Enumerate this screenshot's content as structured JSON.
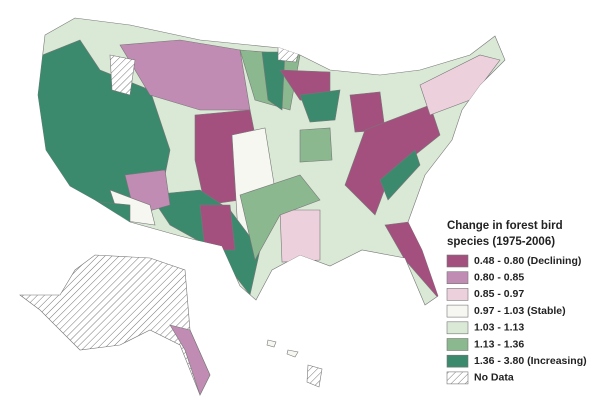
{
  "legend": {
    "title_lines": [
      "Change in forest bird",
      "species (1975-2006)"
    ],
    "items": [
      {
        "label": "0.48 - 0.80 (Declining)",
        "color": "#a4507f"
      },
      {
        "label": "0.80 - 0.85",
        "color": "#c08cb3"
      },
      {
        "label": "0.85 - 0.97",
        "color": "#ecd0dc"
      },
      {
        "label": "0.97 - 1.03 (Stable)",
        "color": "#f7f7f2"
      },
      {
        "label": "1.03 - 1.13",
        "color": "#dae8d6"
      },
      {
        "label": "1.13 - 1.36",
        "color": "#8bb88f"
      },
      {
        "label": "1.36 - 3.80 (Increasing)",
        "color": "#3b8a6e"
      },
      {
        "label": "No Data",
        "hatch": true
      }
    ]
  }
}
